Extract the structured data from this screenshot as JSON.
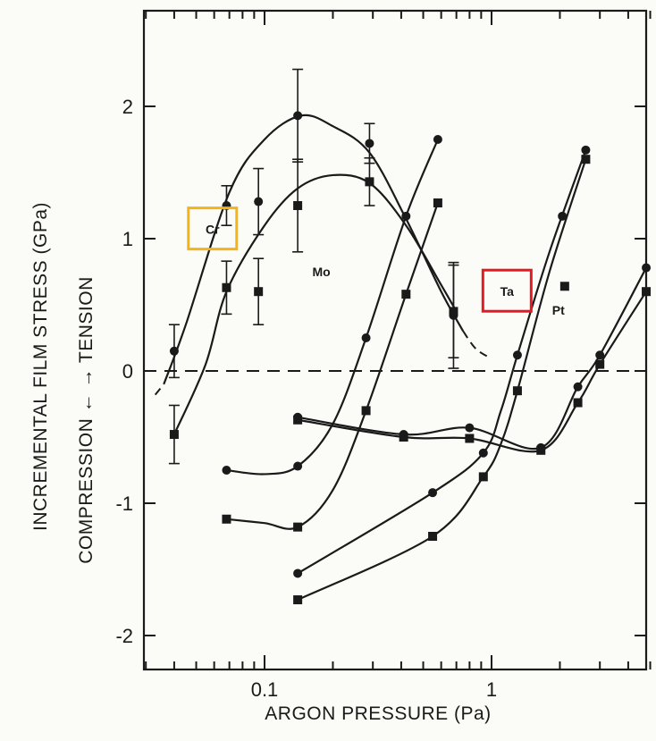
{
  "chart_data": {
    "type": "line",
    "title": "",
    "xlabel": "ARGON PRESSURE (Pa)",
    "ylabel_main": "INCREMENTAL FILM STRESS (GPa)",
    "ylabel_sub": "COMPRESSION ← → TENSION",
    "x_scale": "log",
    "xlim": [
      0.025,
      5.5
    ],
    "ylim": [
      -2.2,
      2.7
    ],
    "x_ticks": [
      {
        "value": 0.1,
        "label": "0.1"
      },
      {
        "value": 1,
        "label": "1"
      }
    ],
    "y_ticks": [
      {
        "value": 2,
        "label": "2"
      },
      {
        "value": 1,
        "label": "1"
      },
      {
        "value": 0,
        "label": "0"
      },
      {
        "value": -1,
        "label": "-1"
      },
      {
        "value": -2,
        "label": "-2"
      }
    ],
    "grid": false,
    "zero_line": "dashed",
    "series": [
      {
        "name": "Cr",
        "marker": "circle",
        "x": [
          0.04,
          0.068,
          0.094,
          0.14,
          0.29,
          0.68
        ],
        "y": [
          0.15,
          1.25,
          1.28,
          1.93,
          1.72,
          0.42
        ],
        "yerr": [
          0.2,
          0.15,
          0.25,
          0.35,
          0.15,
          0.4
        ]
      },
      {
        "name": "Cr",
        "marker": "square",
        "x": [
          0.04,
          0.068,
          0.094,
          0.14,
          0.29,
          0.68
        ],
        "y": [
          -0.48,
          0.63,
          0.6,
          1.25,
          1.43,
          0.45
        ],
        "yerr": [
          0.22,
          0.2,
          0.25,
          0.35,
          0.18,
          0.35
        ]
      },
      {
        "name": "Mo",
        "marker": "circle",
        "x": [
          0.068,
          0.14,
          0.28,
          0.42,
          0.58
        ],
        "y": [
          -0.75,
          -0.72,
          0.25,
          1.17,
          1.75
        ]
      },
      {
        "name": "Mo",
        "marker": "square",
        "x": [
          0.068,
          0.14,
          0.28,
          0.42,
          0.58
        ],
        "y": [
          -1.12,
          -1.18,
          -0.3,
          0.58,
          1.27
        ]
      },
      {
        "name": "Ta",
        "marker": "circle",
        "x": [
          0.14,
          0.55,
          0.92,
          1.3,
          2.6
        ],
        "y": [
          -1.53,
          -0.92,
          -0.62,
          0.12,
          1.67
        ]
      },
      {
        "name": "Ta",
        "marker": "square",
        "x": [
          0.14,
          0.55,
          0.92,
          1.3,
          2.6
        ],
        "y": [
          -1.73,
          -1.25,
          -0.8,
          -0.15,
          1.6
        ]
      },
      {
        "name": "Pt",
        "marker": "circle",
        "x": [
          0.14,
          0.41,
          0.8,
          1.65,
          2.05,
          2.4,
          3.0,
          4.8
        ],
        "y": [
          -0.35,
          -0.48,
          -0.43,
          -0.58,
          1.17,
          -0.12,
          0.12,
          0.78
        ]
      },
      {
        "name": "Pt",
        "marker": "square",
        "x": [
          0.14,
          0.41,
          0.8,
          1.65,
          2.1,
          2.4,
          3.0,
          4.8
        ],
        "y": [
          -0.37,
          -0.5,
          -0.51,
          -0.6,
          0.64,
          -0.24,
          0.05,
          0.6
        ]
      }
    ],
    "labels": [
      {
        "text": "Cr",
        "x": 0.059,
        "y": 1.07,
        "boxed": true,
        "box_color": "#f2b418"
      },
      {
        "text": "Mo",
        "x": 0.178,
        "y": 0.75
      },
      {
        "text": "Ta",
        "x": 1.17,
        "y": 0.6,
        "boxed": true,
        "box_color": "#e21b22"
      },
      {
        "text": "Pt",
        "x": 1.97,
        "y": 0.46
      }
    ]
  }
}
